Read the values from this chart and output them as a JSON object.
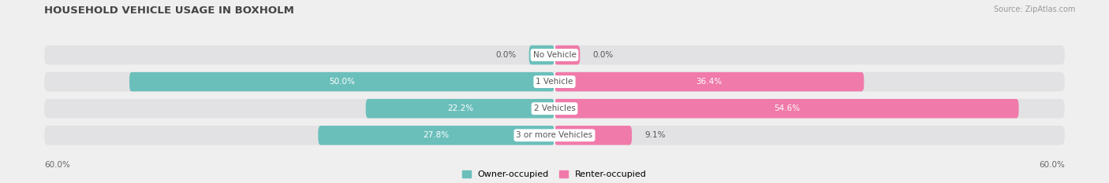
{
  "title": "HOUSEHOLD VEHICLE USAGE IN BOXHOLM",
  "source": "Source: ZipAtlas.com",
  "categories": [
    "No Vehicle",
    "1 Vehicle",
    "2 Vehicles",
    "3 or more Vehicles"
  ],
  "owner_values": [
    0.0,
    50.0,
    22.2,
    27.8
  ],
  "renter_values": [
    0.0,
    36.4,
    54.6,
    9.1
  ],
  "owner_small_bar": 3.0,
  "renter_small_bar": 3.0,
  "owner_color": "#6bbfbb",
  "renter_color": "#f07aaa",
  "owner_label": "Owner-occupied",
  "renter_label": "Renter-occupied",
  "axis_max": 60.0,
  "bg_color": "#efefef",
  "bar_bg_color": "#e2e2e4",
  "bar_gap_color": "#efefef",
  "title_fontsize": 9.5,
  "source_fontsize": 7,
  "value_fontsize": 7.5,
  "cat_fontsize": 7.5,
  "axis_label_fontsize": 7.5,
  "legend_fontsize": 8
}
